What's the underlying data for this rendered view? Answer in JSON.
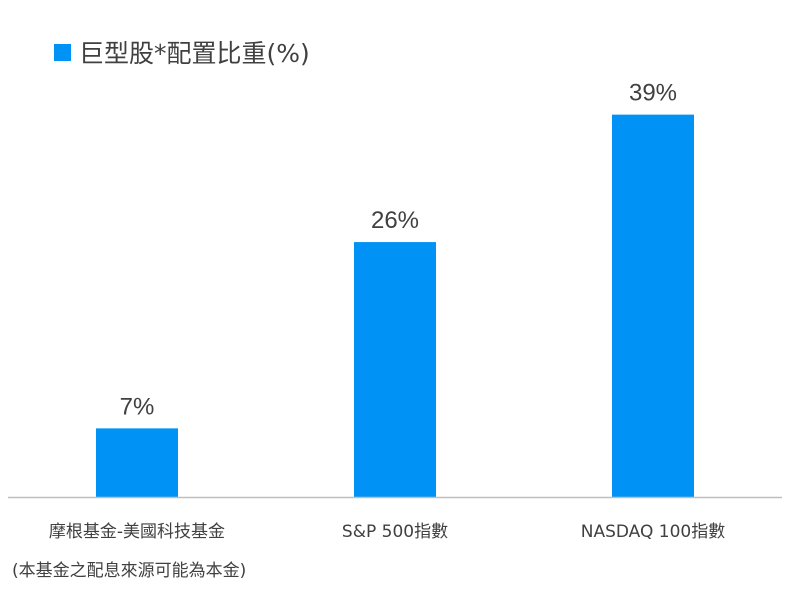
{
  "chart_data": {
    "type": "bar",
    "categories": [
      "摩根基金-美國科技基金",
      "S&P 500指數",
      "NASDAQ 100指數"
    ],
    "series": [
      {
        "name": "巨型股*配置比重(%)",
        "values": [
          7,
          26,
          39
        ]
      }
    ],
    "data_labels": [
      "7%",
      "26%",
      "39%"
    ],
    "ylim": [
      0,
      46
    ],
    "legend": "top-left",
    "grid": false,
    "note": "(本基金之配息來源可能為本金)",
    "colors": {
      "bar": "#0093F5",
      "axis": "#BFBFBF",
      "text": "#404040"
    }
  }
}
